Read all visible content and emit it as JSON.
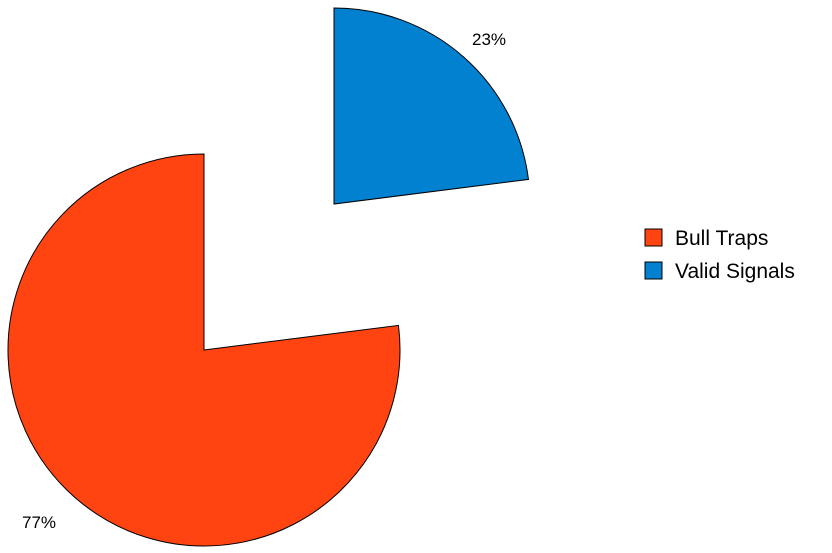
{
  "chart_data": {
    "type": "pie",
    "exploded": true,
    "start_angle_deg": 0,
    "direction": "clockwise",
    "legend_position": "right",
    "slices": [
      {
        "name": "Valid Signals",
        "value": 23,
        "label": "23%",
        "color": "#0281d0"
      },
      {
        "name": "Bull Traps",
        "value": 77,
        "label": "77%",
        "color": "#ff4411"
      }
    ],
    "legend": [
      {
        "name": "Bull Traps",
        "color": "#ff4411"
      },
      {
        "name": "Valid Signals",
        "color": "#0281d0"
      }
    ]
  }
}
